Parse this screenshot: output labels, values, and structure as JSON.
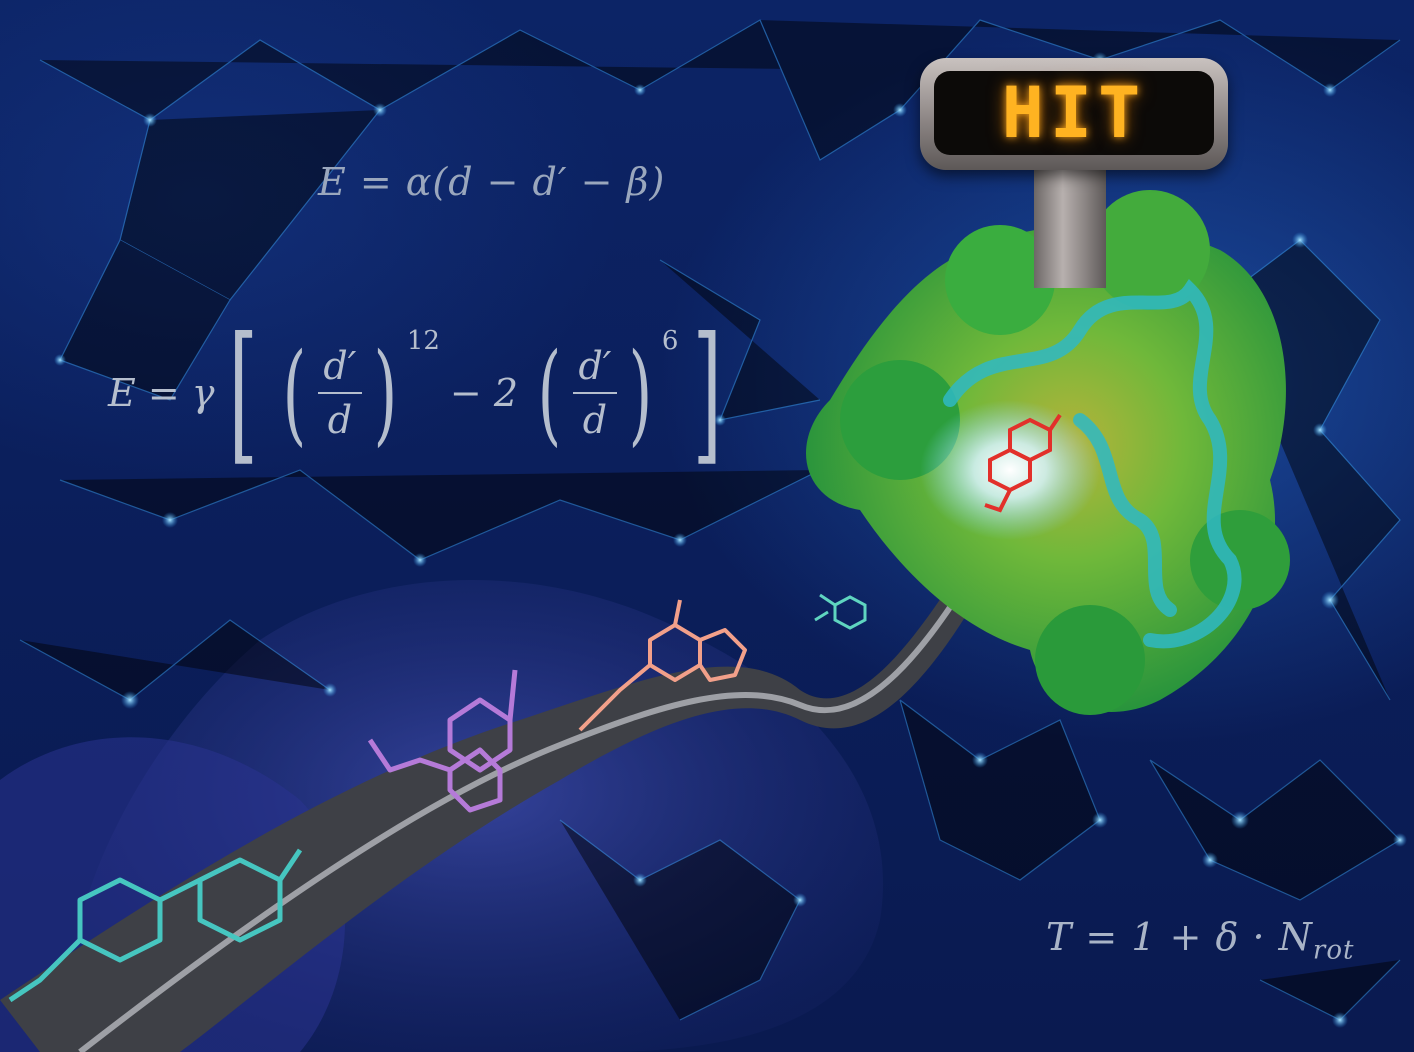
{
  "sign": {
    "text": "HIT"
  },
  "equations": {
    "eq1": "E = α(d − d′ − β)",
    "eq2": {
      "lhs": "E = γ",
      "numerator": "d′",
      "denominator": "d",
      "exp1": "12",
      "mid": "− 2",
      "exp2": "6"
    },
    "eq3": "T = 1 + δ · N",
    "eq3_sub": "rot"
  },
  "colors": {
    "background": "#0b1f5c",
    "network": "#3aa0e8",
    "protein": "#3fb13a",
    "ribbon": "#2fb9c4",
    "ligand_red": "#e2302a",
    "path": "#3f4045",
    "sign_glow": "#ffb321",
    "mol_teal": "#46c6c0",
    "mol_purple": "#b57ad8",
    "mol_salmon": "#f2a08a"
  }
}
